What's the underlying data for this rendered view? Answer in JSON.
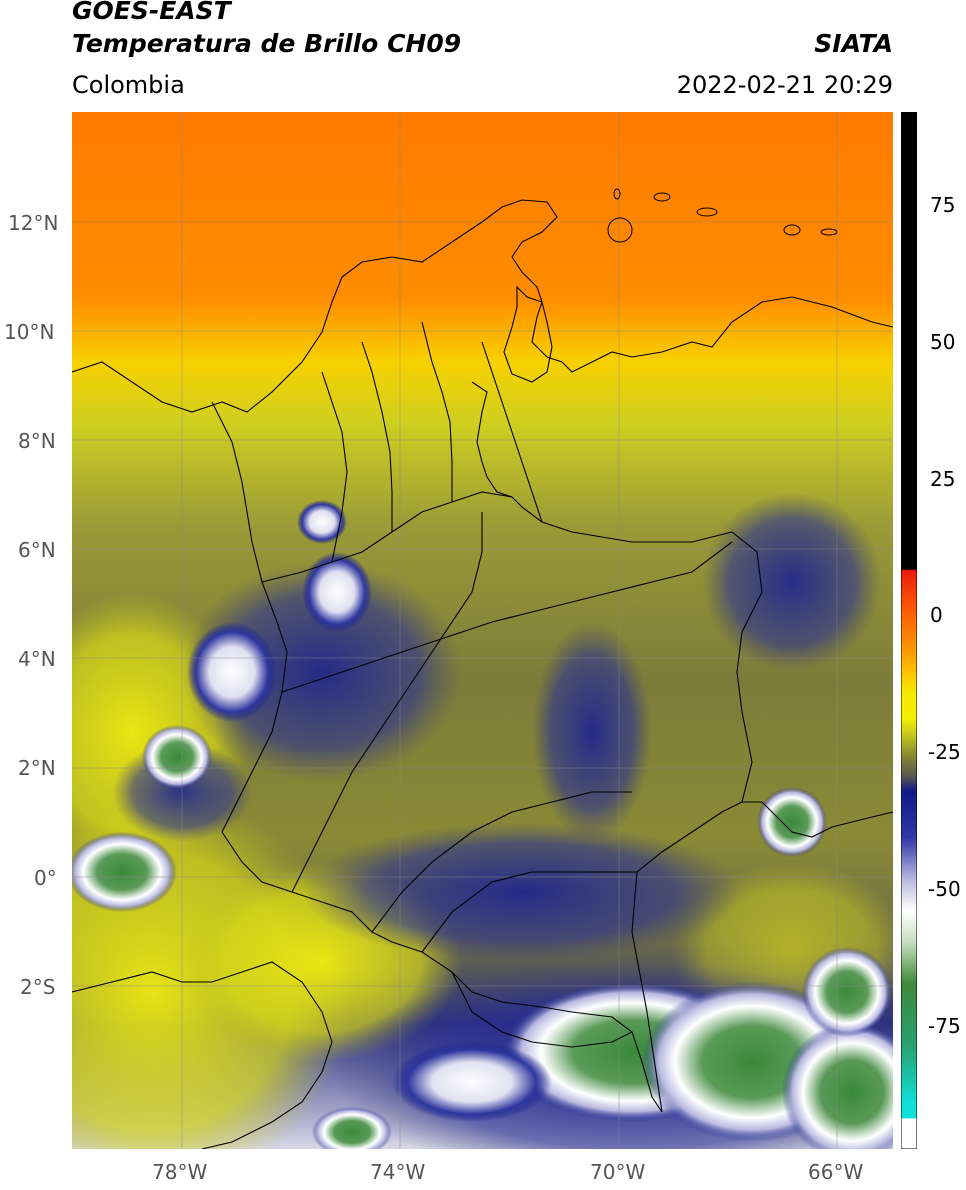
{
  "header": {
    "satellite": "GOES-EAST",
    "product": "Temperatura de Brillo CH09",
    "region": "Colombia",
    "agency": "SIATA",
    "timestamp": "2022-02-21 20:29"
  },
  "map": {
    "lat_ticks": [
      "12°N",
      "10°N",
      "8°N",
      "6°N",
      "4°N",
      "2°N",
      "0°",
      "2°S"
    ],
    "lon_ticks": [
      "78°W",
      "74°W",
      "70°W",
      "66°W"
    ],
    "lon_range": [
      -80,
      -65
    ],
    "lat_range": [
      -5,
      14
    ],
    "gridlines": true
  },
  "colorbar": {
    "ticks": [
      "75",
      "50",
      "25",
      "0",
      "-25",
      "-50",
      "-75"
    ],
    "colors": {
      "black": "#000000",
      "red": "#e8190a",
      "orange": "#ff8a00",
      "yellow": "#f4ee00",
      "olive": "#8a8a30",
      "navy": "#101a88",
      "white": "#ffffff",
      "green": "#3f8a3a",
      "cyan": "#10e0d8"
    }
  }
}
